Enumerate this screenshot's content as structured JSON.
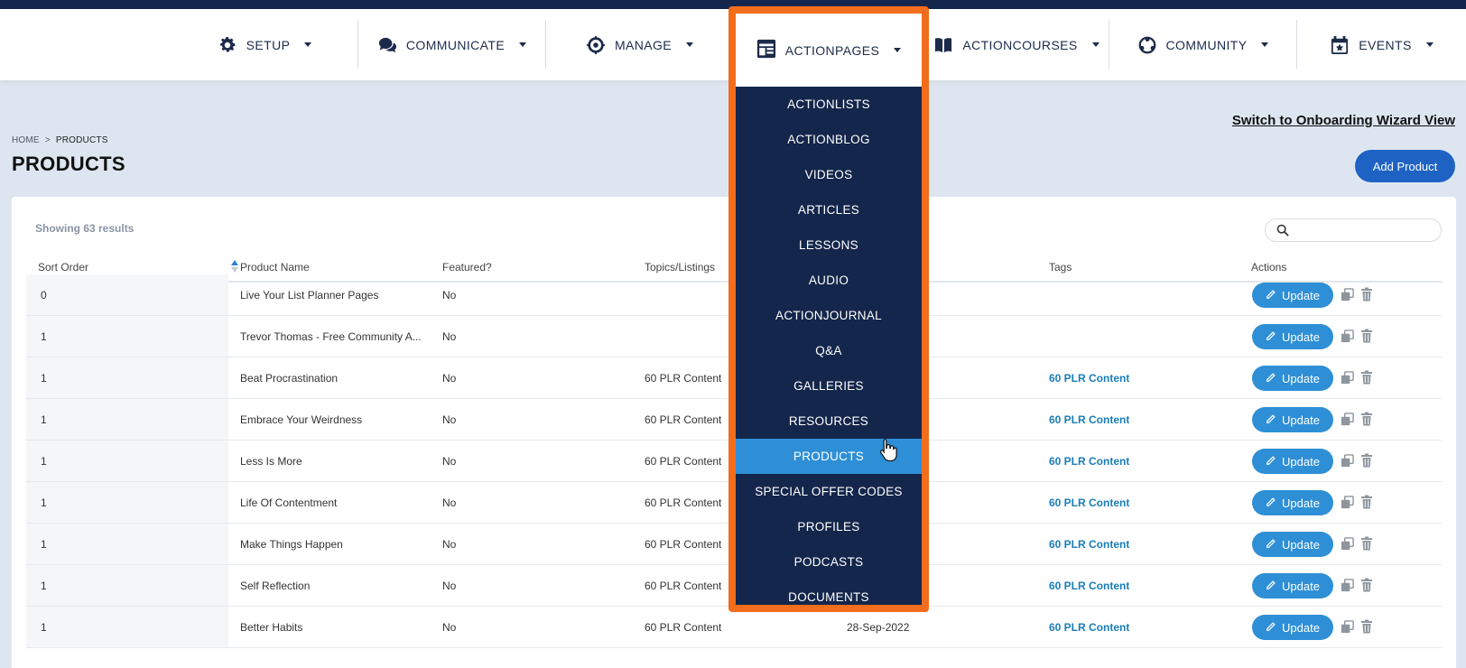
{
  "nav": {
    "items": [
      {
        "label": "SETUP",
        "icon": "gear-icon"
      },
      {
        "label": "COMMUNICATE",
        "icon": "chat-bubbles-icon"
      },
      {
        "label": "MANAGE",
        "icon": "manage-gear-icon"
      },
      {
        "label": "ACTIONPAGES",
        "icon": "pages-icon"
      },
      {
        "label": "ACTIONCOURSES",
        "icon": "book-icon"
      },
      {
        "label": "COMMUNITY",
        "icon": "community-icon"
      },
      {
        "label": "EVENTS",
        "icon": "calendar-icon"
      }
    ]
  },
  "dropdown": {
    "items": [
      "ACTIONLISTS",
      "ACTIONBLOG",
      "VIDEOS",
      "ARTICLES",
      "LESSONS",
      "AUDIO",
      "ACTIONJOURNAL",
      "Q&A",
      "GALLERIES",
      "RESOURCES",
      "PRODUCTS",
      "SPECIAL OFFER CODES",
      "PROFILES",
      "PODCASTS",
      "DOCUMENTS"
    ],
    "active": "PRODUCTS"
  },
  "breadcrumb": {
    "home": "HOME",
    "separator": ">",
    "current": "PRODUCTS"
  },
  "page": {
    "title": "PRODUCTS",
    "wizard_link": "Switch to Onboarding Wizard View",
    "add_button": "Add Product",
    "showing": "Showing 63 results",
    "search_placeholder": ""
  },
  "table": {
    "columns": [
      "Sort Order",
      "Product Name",
      "Featured?",
      "Topics/Listings",
      "Tags",
      "Actions"
    ],
    "update_label": "Update",
    "rows": [
      {
        "sort": "0",
        "name": "Live Your List Planner Pages",
        "featured": "No",
        "topics": "",
        "date": "",
        "tags": ""
      },
      {
        "sort": "1",
        "name": "Trevor Thomas - Free Community A...",
        "featured": "No",
        "topics": "",
        "date": "",
        "tags": ""
      },
      {
        "sort": "1",
        "name": "Beat Procrastination",
        "featured": "No",
        "topics": "60 PLR Content",
        "date": "",
        "tags": "60 PLR Content"
      },
      {
        "sort": "1",
        "name": "Embrace Your Weirdness",
        "featured": "No",
        "topics": "60 PLR Content",
        "date": "",
        "tags": "60 PLR Content"
      },
      {
        "sort": "1",
        "name": "Less Is More",
        "featured": "No",
        "topics": "60 PLR Content",
        "date": "",
        "tags": "60 PLR Content"
      },
      {
        "sort": "1",
        "name": "Life Of Contentment",
        "featured": "No",
        "topics": "60 PLR Content",
        "date": "",
        "tags": "60 PLR Content"
      },
      {
        "sort": "1",
        "name": "Make Things Happen",
        "featured": "No",
        "topics": "60 PLR Content",
        "date": "",
        "tags": "60 PLR Content"
      },
      {
        "sort": "1",
        "name": "Self Reflection",
        "featured": "No",
        "topics": "60 PLR Content",
        "date": "",
        "tags": "60 PLR Content"
      },
      {
        "sort": "1",
        "name": "Better Habits",
        "featured": "No",
        "topics": "60 PLR Content",
        "date": "28-Sep-2022",
        "tags": "60 PLR Content"
      }
    ]
  },
  "colors": {
    "navy": "#14264b",
    "accent_blue": "#2e8fd6",
    "highlight_orange": "#f26d1c",
    "tag_blue": "#1a7db8"
  }
}
